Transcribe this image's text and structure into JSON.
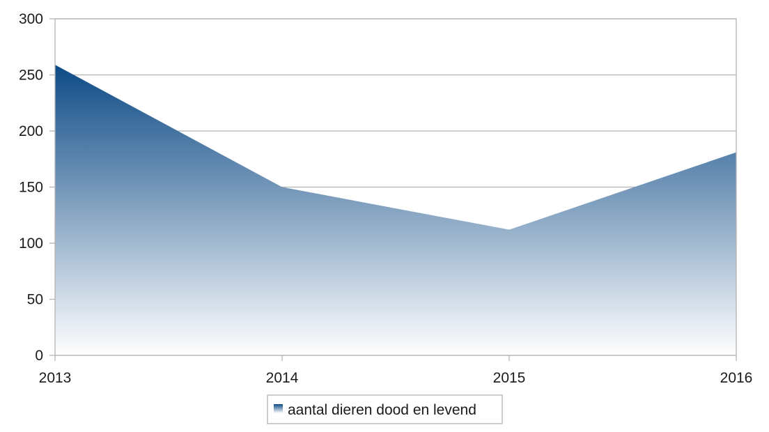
{
  "chart_data": {
    "type": "area",
    "x": [
      "2013",
      "2014",
      "2015",
      "2016"
    ],
    "series": [
      {
        "name": "aantal dieren dood en levend",
        "values": [
          259,
          150,
          112,
          181
        ]
      }
    ],
    "title": "",
    "xlabel": "",
    "ylabel": "",
    "ylim": [
      0,
      300
    ],
    "yticks": [
      "0",
      "50",
      "100",
      "150",
      "200",
      "250",
      "300"
    ],
    "grid": true,
    "legend": "bottom-center",
    "colors": {
      "fill_top": "#0d4a86",
      "fill_bottom": "#ffffff",
      "grid": "#b3b3b3",
      "axis": "#b3b3b3"
    }
  }
}
